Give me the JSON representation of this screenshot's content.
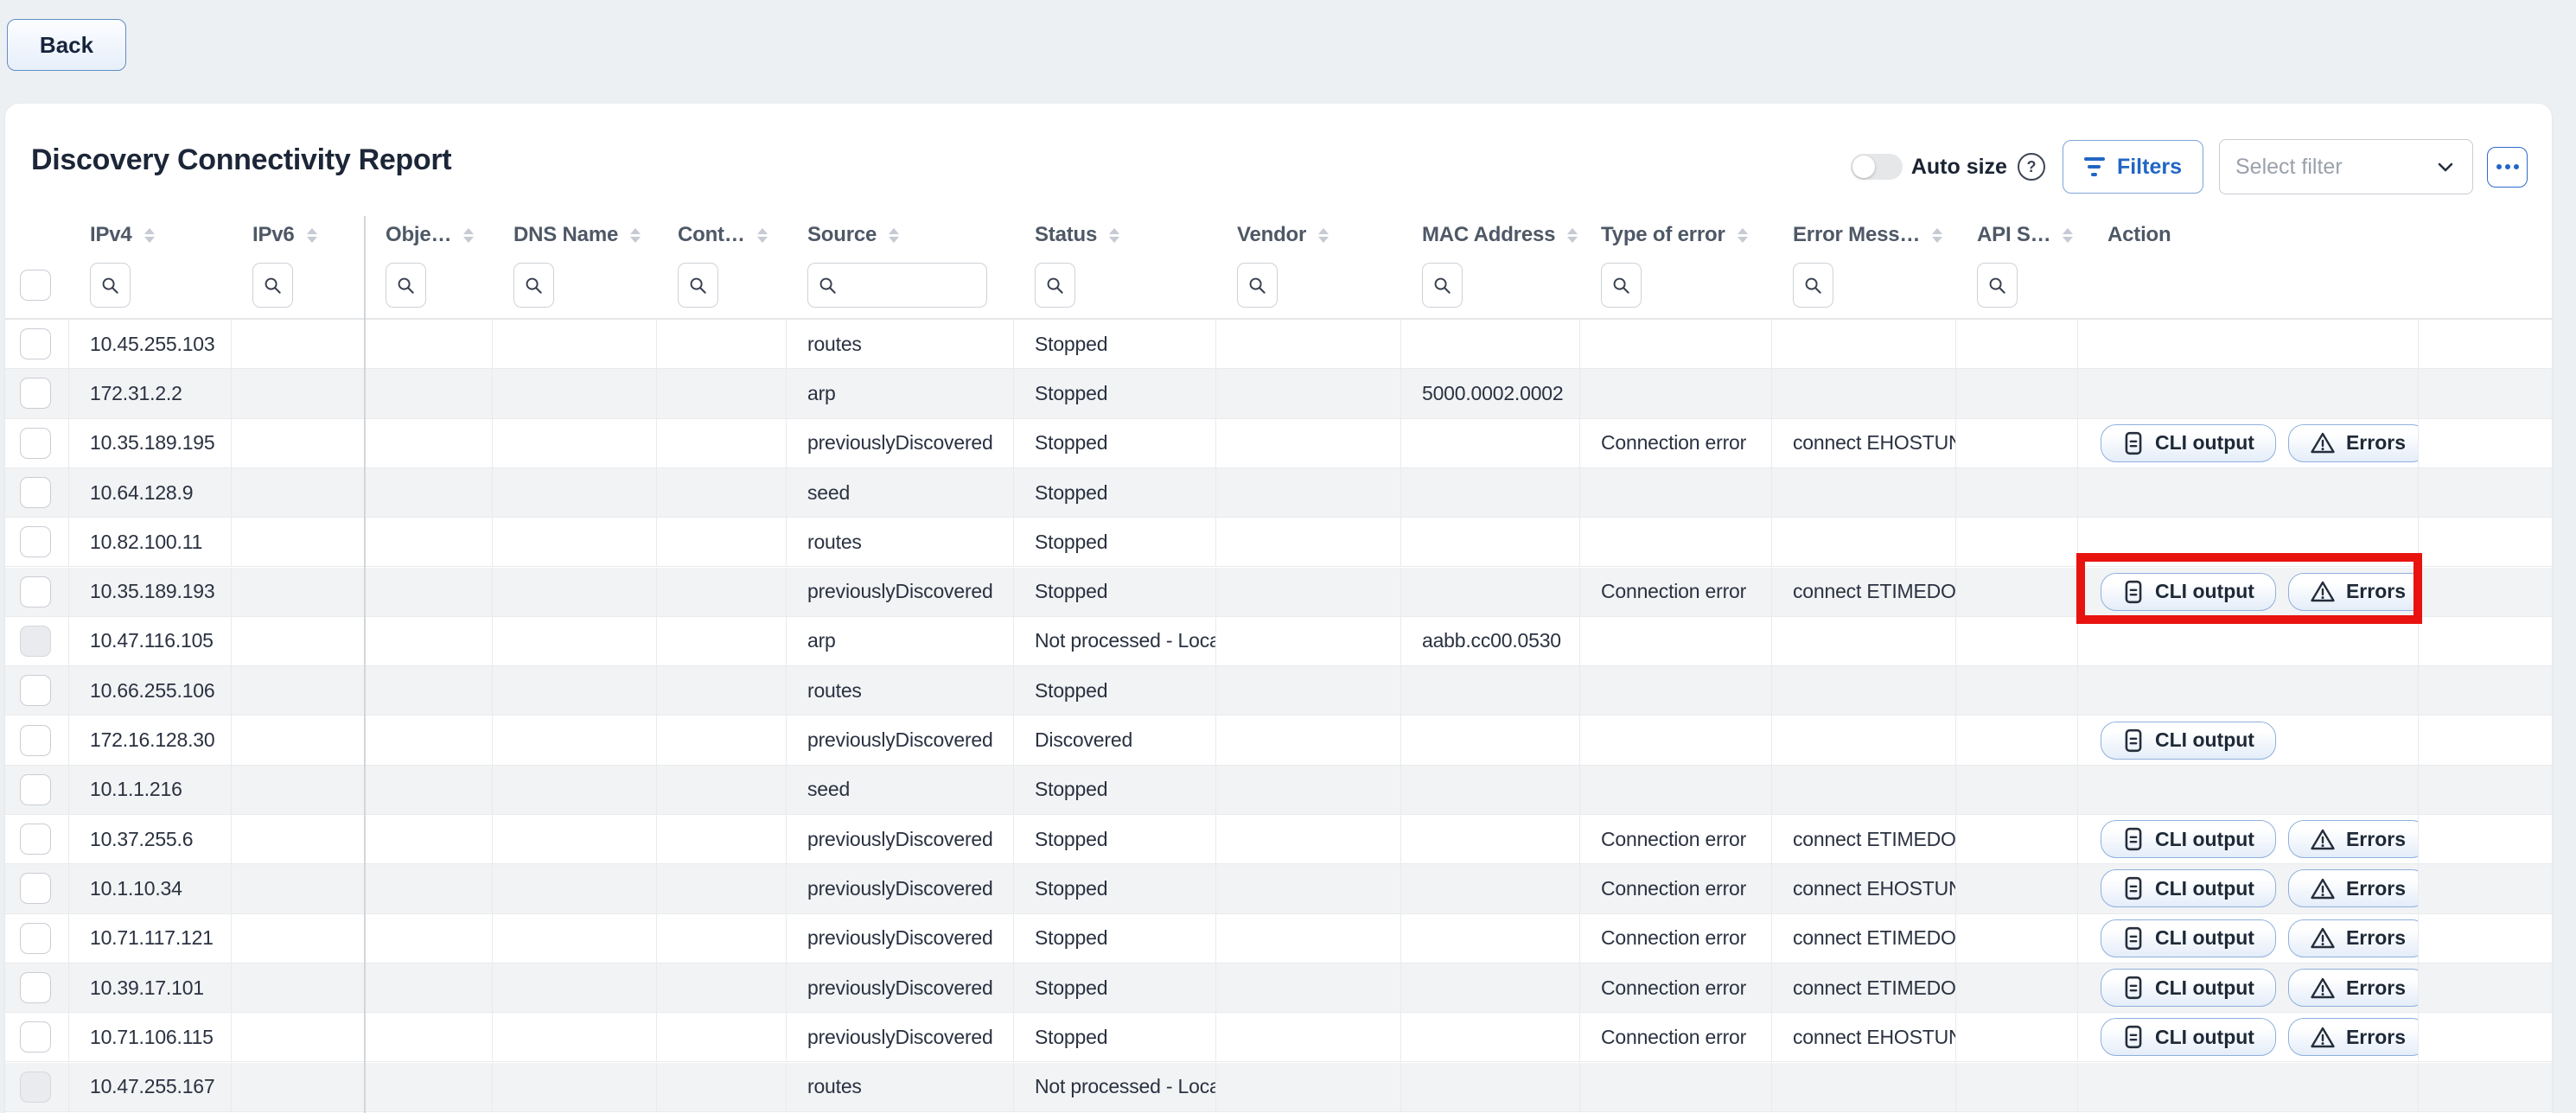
{
  "page": {
    "back_label": "Back",
    "title": "Discovery Connectivity Report"
  },
  "toolbar": {
    "auto_size_label": "Auto size",
    "auto_size_state": "off",
    "help_glyph": "?",
    "filters_label": "Filters",
    "select_filter_placeholder": "Select filter",
    "icons": [
      "toggle-switch",
      "question-circle-icon",
      "filter-icon",
      "chevron-down-icon",
      "ellipsis-icon"
    ]
  },
  "table": {
    "columns": [
      {
        "key": "ipv4",
        "label": "IPv4",
        "sortable": true,
        "search": "narrow"
      },
      {
        "key": "ipv6",
        "label": "IPv6",
        "sortable": true,
        "search": "narrow"
      },
      {
        "key": "object",
        "label": "Obje…",
        "sortable": true,
        "search": "narrow"
      },
      {
        "key": "dns",
        "label": "DNS Name",
        "sortable": true,
        "search": "narrow"
      },
      {
        "key": "context",
        "label": "Cont…",
        "sortable": true,
        "search": "narrow"
      },
      {
        "key": "source",
        "label": "Source",
        "sortable": true,
        "search": "wide"
      },
      {
        "key": "status",
        "label": "Status",
        "sortable": true,
        "search": "narrow"
      },
      {
        "key": "vendor",
        "label": "Vendor",
        "sortable": true,
        "search": "narrow"
      },
      {
        "key": "mac",
        "label": "MAC Address",
        "sortable": true,
        "search": "narrow"
      },
      {
        "key": "type_of_error",
        "label": "Type of error",
        "sortable": true,
        "search": "narrow"
      },
      {
        "key": "error_message",
        "label": "Error Mess…",
        "sortable": true,
        "search": "narrow"
      },
      {
        "key": "api_s",
        "label": "API S…",
        "sortable": true,
        "search": "narrow"
      },
      {
        "key": "action",
        "label": "Action",
        "sortable": false,
        "search": null
      }
    ],
    "action_buttons": [
      {
        "id": "cli",
        "label": "CLI output",
        "icon": "document-icon"
      },
      {
        "id": "errors",
        "label": "Errors",
        "icon": "warning-triangle-icon"
      }
    ],
    "rows": [
      {
        "ipv4": "10.45.255.103",
        "source": "routes",
        "status": "Stopped",
        "actions": []
      },
      {
        "ipv4": "172.31.2.2",
        "source": "arp",
        "status": "Stopped",
        "mac": "5000.0002.0002",
        "actions": []
      },
      {
        "ipv4": "10.35.189.195",
        "source": "previouslyDiscovered",
        "status": "Stopped",
        "type_of_error": "Connection error",
        "error_message": "connect EHOSTUN",
        "actions": [
          "cli",
          "errors"
        ]
      },
      {
        "ipv4": "10.64.128.9",
        "source": "seed",
        "status": "Stopped",
        "actions": []
      },
      {
        "ipv4": "10.82.100.11",
        "source": "routes",
        "status": "Stopped",
        "actions": []
      },
      {
        "ipv4": "10.35.189.193",
        "source": "previouslyDiscovered",
        "status": "Stopped",
        "type_of_error": "Connection error",
        "error_message": "connect ETIMEDO",
        "actions": [
          "cli",
          "errors"
        ],
        "highlighted": true
      },
      {
        "ipv4": "10.47.116.105",
        "source": "arp",
        "status": "Not processed - Local",
        "mac": "aabb.cc00.0530",
        "checkbox_disabled": true,
        "actions": []
      },
      {
        "ipv4": "10.66.255.106",
        "source": "routes",
        "status": "Stopped",
        "actions": []
      },
      {
        "ipv4": "172.16.128.30",
        "source": "previouslyDiscovered",
        "status": "Discovered",
        "actions": [
          "cli"
        ]
      },
      {
        "ipv4": "10.1.1.216",
        "source": "seed",
        "status": "Stopped",
        "actions": []
      },
      {
        "ipv4": "10.37.255.6",
        "source": "previouslyDiscovered",
        "status": "Stopped",
        "type_of_error": "Connection error",
        "error_message": "connect ETIMEDO",
        "actions": [
          "cli",
          "errors"
        ]
      },
      {
        "ipv4": "10.1.10.34",
        "source": "previouslyDiscovered",
        "status": "Stopped",
        "type_of_error": "Connection error",
        "error_message": "connect EHOSTUN",
        "actions": [
          "cli",
          "errors"
        ]
      },
      {
        "ipv4": "10.71.117.121",
        "source": "previouslyDiscovered",
        "status": "Stopped",
        "type_of_error": "Connection error",
        "error_message": "connect ETIMEDO",
        "actions": [
          "cli",
          "errors"
        ]
      },
      {
        "ipv4": "10.39.17.101",
        "source": "previouslyDiscovered",
        "status": "Stopped",
        "type_of_error": "Connection error",
        "error_message": "connect ETIMEDO",
        "actions": [
          "cli",
          "errors"
        ]
      },
      {
        "ipv4": "10.71.106.115",
        "source": "previouslyDiscovered",
        "status": "Stopped",
        "type_of_error": "Connection error",
        "error_message": "connect EHOSTUN",
        "actions": [
          "cli",
          "errors"
        ]
      },
      {
        "ipv4": "10.47.255.167",
        "source": "routes",
        "status": "Not processed - Local",
        "checkbox_disabled": true,
        "actions": []
      }
    ]
  },
  "colors": {
    "accent_blue": "#2166c4",
    "highlight_red": "#e8130f",
    "row_alt_bg": "#f2f3f5",
    "text_dark": "#2a3140",
    "header_text": "#4e5866"
  }
}
